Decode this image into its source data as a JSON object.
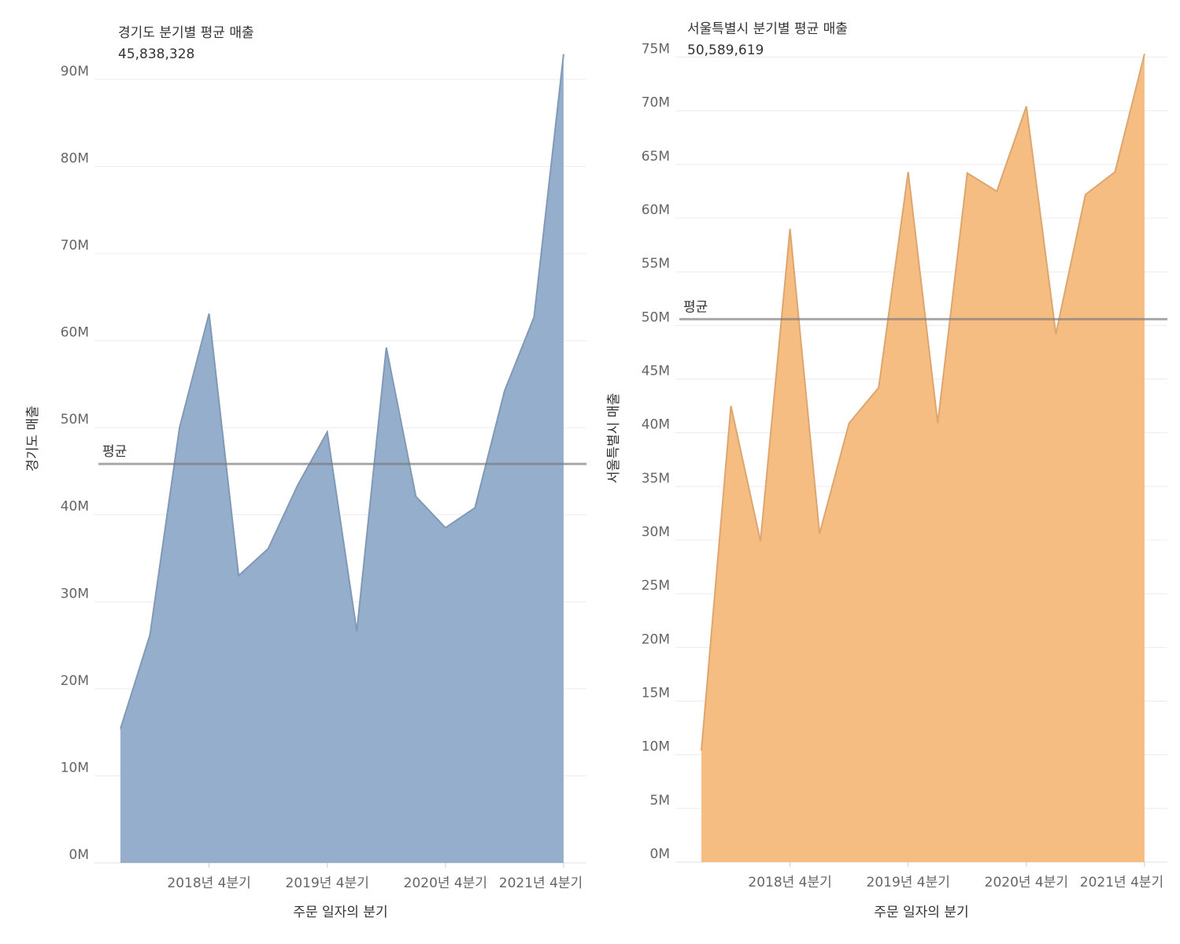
{
  "chart_data": [
    {
      "type": "area",
      "title": "경기도 분기별 평균 매출",
      "ylabel": "경기도 매출",
      "xlabel": "주문 일자의 분기",
      "categories": [
        null,
        null,
        null,
        "2018년 4분기",
        null,
        null,
        null,
        "2019년 4분기",
        null,
        null,
        null,
        "2020년 4분기",
        null,
        null,
        null,
        "2021년 4분기"
      ],
      "series": [
        {
          "name": "경기도",
          "color": "#8faac9",
          "values": [
            15400000,
            26200000,
            50000000,
            63100000,
            33000000,
            36100000,
            43400000,
            49500000,
            26600000,
            59200000,
            42100000,
            38500000,
            40800000,
            54200000,
            62700000,
            92900000
          ]
        }
      ],
      "average": {
        "label": "평균",
        "value": 45838328,
        "text": "45,838,328"
      },
      "ylim": [
        0,
        97500000
      ],
      "yticks": [
        {
          "value": 0,
          "label": "0M"
        },
        {
          "value": 10000000,
          "label": "10M"
        },
        {
          "value": 20000000,
          "label": "20M"
        },
        {
          "value": 30000000,
          "label": "30M"
        },
        {
          "value": 40000000,
          "label": "40M"
        },
        {
          "value": 50000000,
          "label": "50M"
        },
        {
          "value": 60000000,
          "label": "60M"
        },
        {
          "value": 70000000,
          "label": "70M"
        },
        {
          "value": 80000000,
          "label": "80M"
        },
        {
          "value": 90000000,
          "label": "90M"
        }
      ],
      "grid": true
    },
    {
      "type": "area",
      "title": "서울특별시 분기별 평균 매출",
      "ylabel": "서울특별시 매출",
      "xlabel": "주문 일자의 분기",
      "categories": [
        null,
        null,
        null,
        "2018년 4분기",
        null,
        null,
        null,
        "2019년 4분기",
        null,
        null,
        null,
        "2020년 4분기",
        null,
        null,
        null,
        "2021년 4분기"
      ],
      "series": [
        {
          "name": "서울특별시",
          "color": "#f5b97b",
          "values": [
            10400000,
            42500000,
            29900000,
            59000000,
            30600000,
            40900000,
            44200000,
            64300000,
            40900000,
            64200000,
            62500000,
            70400000,
            49200000,
            62200000,
            64300000,
            75300000
          ]
        }
      ],
      "average": {
        "label": "평균",
        "value": 50589619,
        "text": "50,589,619"
      },
      "ylim": [
        0,
        79000000
      ],
      "yticks": [
        {
          "value": 0,
          "label": "0M"
        },
        {
          "value": 5000000,
          "label": "5M"
        },
        {
          "value": 10000000,
          "label": "10M"
        },
        {
          "value": 15000000,
          "label": "15M"
        },
        {
          "value": 20000000,
          "label": "20M"
        },
        {
          "value": 25000000,
          "label": "25M"
        },
        {
          "value": 30000000,
          "label": "30M"
        },
        {
          "value": 35000000,
          "label": "35M"
        },
        {
          "value": 40000000,
          "label": "40M"
        },
        {
          "value": 45000000,
          "label": "45M"
        },
        {
          "value": 50000000,
          "label": "50M"
        },
        {
          "value": 55000000,
          "label": "55M"
        },
        {
          "value": 60000000,
          "label": "60M"
        },
        {
          "value": 65000000,
          "label": "65M"
        },
        {
          "value": 70000000,
          "label": "70M"
        },
        {
          "value": 75000000,
          "label": "75M"
        }
      ],
      "grid": true
    }
  ]
}
